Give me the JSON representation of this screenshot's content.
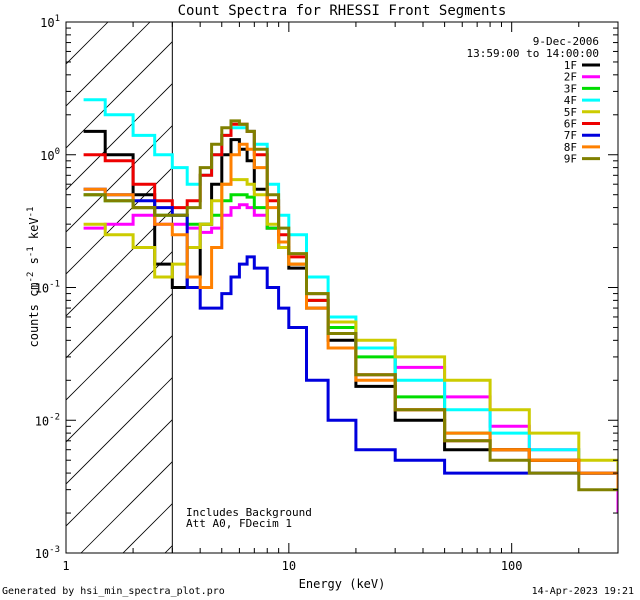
{
  "chart_data": {
    "type": "line",
    "title": "Count Spectra for RHESSI Front Segments",
    "xlabel": "Energy (keV)",
    "ylabel": "counts cm",
    "ylabel_sup1": "-2",
    "ylabel_mid": " s",
    "ylabel_sup2": "-1",
    "ylabel_unit": " keV",
    "ylabel_sup3": "-1",
    "xscale": "log",
    "yscale": "log",
    "xlim": [
      1,
      300
    ],
    "ylim": [
      0.001,
      10
    ],
    "x_ticks": [
      {
        "value": 1,
        "label": "1"
      },
      {
        "value": 10,
        "label": "10"
      },
      {
        "value": 100,
        "label": "100"
      }
    ],
    "y_ticks": [
      {
        "exp": -3,
        "label": "10",
        "sup": "-3"
      },
      {
        "exp": -2,
        "label": "10",
        "sup": "-2"
      },
      {
        "exp": -1,
        "label": "10",
        "sup": "-1"
      },
      {
        "exp": 0,
        "label": "10",
        "sup": "0"
      },
      {
        "exp": 1,
        "label": "10",
        "sup": "1"
      }
    ],
    "hatched_region_keV": [
      1,
      3
    ],
    "date": "9-Dec-2006",
    "time_range": "13:59:00 to 14:00:00",
    "annotations": [
      "Includes Background",
      "Att A0, FDecim 1"
    ],
    "legend_position": "top-right",
    "series": [
      {
        "name": "1F",
        "color": "#000000",
        "x": [
          1.2,
          1.5,
          2,
          2.5,
          3,
          3.5,
          4,
          4.5,
          5,
          5.5,
          6,
          6.5,
          7,
          8,
          9,
          10,
          12,
          15,
          20,
          30,
          50,
          80,
          120,
          200,
          300
        ],
        "y": [
          1.5,
          1.0,
          0.5,
          0.15,
          0.1,
          0.12,
          0.3,
          0.6,
          1.0,
          1.3,
          1.1,
          0.9,
          0.55,
          0.28,
          0.2,
          0.14,
          0.07,
          0.04,
          0.018,
          0.01,
          0.006,
          0.006,
          0.005,
          0.004,
          0.003
        ]
      },
      {
        "name": "2F",
        "color": "#ff00ff",
        "x": [
          1.2,
          1.5,
          2,
          2.5,
          3,
          3.5,
          4,
          4.5,
          5,
          5.5,
          6,
          6.5,
          7,
          8,
          9,
          10,
          12,
          15,
          20,
          30,
          50,
          80,
          120,
          200,
          300
        ],
        "y": [
          0.28,
          0.3,
          0.35,
          0.3,
          0.3,
          0.28,
          0.26,
          0.28,
          0.35,
          0.4,
          0.42,
          0.4,
          0.35,
          0.28,
          0.2,
          0.15,
          0.09,
          0.05,
          0.035,
          0.025,
          0.015,
          0.009,
          0.006,
          0.004,
          0.002
        ]
      },
      {
        "name": "3F",
        "color": "#00dd00",
        "x": [
          1.2,
          1.5,
          2,
          2.5,
          3,
          3.5,
          4,
          4.5,
          5,
          5.5,
          6,
          6.5,
          7,
          8,
          9,
          10,
          12,
          15,
          20,
          30,
          50,
          80,
          120,
          200,
          300
        ],
        "y": [
          0.5,
          0.45,
          0.4,
          0.35,
          0.35,
          0.3,
          0.3,
          0.35,
          0.45,
          0.5,
          0.5,
          0.48,
          0.4,
          0.28,
          0.2,
          0.15,
          0.08,
          0.05,
          0.03,
          0.015,
          0.008,
          0.006,
          0.005,
          0.004,
          0.003
        ]
      },
      {
        "name": "4F",
        "color": "#00ffff",
        "x": [
          1.2,
          1.5,
          2,
          2.5,
          3,
          3.5,
          4,
          4.5,
          5,
          5.5,
          6,
          6.5,
          7,
          8,
          9,
          10,
          12,
          15,
          20,
          30,
          50,
          80,
          120,
          200,
          300
        ],
        "y": [
          2.6,
          2.0,
          1.4,
          1.0,
          0.8,
          0.6,
          0.7,
          1.0,
          1.4,
          1.6,
          1.6,
          1.5,
          1.2,
          0.6,
          0.35,
          0.25,
          0.12,
          0.06,
          0.035,
          0.02,
          0.012,
          0.008,
          0.006,
          0.004,
          0.003
        ]
      },
      {
        "name": "5F",
        "color": "#cccc00",
        "x": [
          1.2,
          1.5,
          2,
          2.5,
          3,
          3.5,
          4,
          4.5,
          5,
          5.5,
          6,
          6.5,
          7,
          8,
          9,
          10,
          12,
          15,
          20,
          30,
          50,
          80,
          120,
          200,
          300
        ],
        "y": [
          0.3,
          0.25,
          0.2,
          0.12,
          0.15,
          0.2,
          0.3,
          0.45,
          0.6,
          0.65,
          0.65,
          0.6,
          0.5,
          0.3,
          0.2,
          0.15,
          0.09,
          0.055,
          0.04,
          0.03,
          0.02,
          0.012,
          0.008,
          0.005,
          0.003
        ]
      },
      {
        "name": "6F",
        "color": "#ee0000",
        "x": [
          1.2,
          1.5,
          2,
          2.5,
          3,
          3.5,
          4,
          4.5,
          5,
          5.5,
          6,
          6.5,
          7,
          8,
          9,
          10,
          12,
          15,
          20,
          30,
          50,
          80,
          120,
          200,
          300
        ],
        "y": [
          1.0,
          0.9,
          0.6,
          0.45,
          0.4,
          0.45,
          0.7,
          1.0,
          1.4,
          1.7,
          1.7,
          1.5,
          1.0,
          0.45,
          0.25,
          0.17,
          0.08,
          0.045,
          0.022,
          0.012,
          0.007,
          0.006,
          0.005,
          0.004,
          0.003
        ]
      },
      {
        "name": "7F",
        "color": "#0000dd",
        "x": [
          1.2,
          1.5,
          2,
          2.5,
          3,
          3.5,
          4,
          4.5,
          5,
          5.5,
          6,
          6.5,
          7,
          8,
          9,
          10,
          12,
          15,
          20,
          30,
          50,
          80,
          120,
          200,
          300
        ],
        "y": [
          0.55,
          0.5,
          0.45,
          0.4,
          0.35,
          0.1,
          0.07,
          0.07,
          0.09,
          0.12,
          0.15,
          0.17,
          0.14,
          0.1,
          0.07,
          0.05,
          0.02,
          0.01,
          0.006,
          0.005,
          0.004,
          0.004,
          0.004,
          0.004,
          0.003
        ]
      },
      {
        "name": "8F",
        "color": "#ff8000",
        "x": [
          1.2,
          1.5,
          2,
          2.5,
          3,
          3.5,
          4,
          4.5,
          5,
          5.5,
          6,
          6.5,
          7,
          8,
          9,
          10,
          12,
          15,
          20,
          30,
          50,
          80,
          120,
          200,
          300
        ],
        "y": [
          0.55,
          0.5,
          0.4,
          0.3,
          0.25,
          0.12,
          0.1,
          0.2,
          0.6,
          1.0,
          1.2,
          1.1,
          0.8,
          0.4,
          0.22,
          0.15,
          0.07,
          0.035,
          0.02,
          0.012,
          0.008,
          0.006,
          0.005,
          0.004,
          0.003
        ]
      },
      {
        "name": "9F",
        "color": "#808000",
        "x": [
          1.2,
          1.5,
          2,
          2.5,
          3,
          3.5,
          4,
          4.5,
          5,
          5.5,
          6,
          6.5,
          7,
          8,
          9,
          10,
          12,
          15,
          20,
          30,
          50,
          80,
          120,
          200,
          300
        ],
        "y": [
          0.5,
          0.45,
          0.4,
          0.35,
          0.35,
          0.4,
          0.8,
          1.2,
          1.6,
          1.8,
          1.7,
          1.5,
          1.1,
          0.5,
          0.28,
          0.18,
          0.09,
          0.045,
          0.022,
          0.012,
          0.007,
          0.005,
          0.004,
          0.003,
          0.003
        ]
      }
    ]
  },
  "footer": {
    "generated_by": "Generated by hsi_min_spectra_plot.pro",
    "date_time": "14-Apr-2023 19:21"
  }
}
